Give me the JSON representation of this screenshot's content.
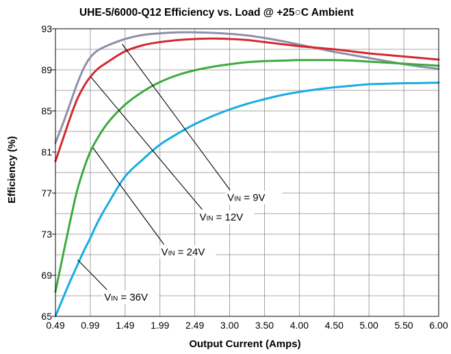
{
  "chart_data": {
    "type": "line",
    "title": "UHE-5/6000-Q12 Efficiency vs. Load @ +25○C Ambient",
    "xlabel": "Output Current (Amps)",
    "ylabel": "Efficiency (%)",
    "xlim": [
      0.49,
      6.0
    ],
    "ylim": [
      65,
      93
    ],
    "x_ticks": [
      "0.49",
      "0.99",
      "1.49",
      "1.99",
      "2.49",
      "3.00",
      "3.50",
      "4.00",
      "4.50",
      "5.00",
      "5.50",
      "6.00"
    ],
    "y_ticks": [
      "65",
      "69",
      "73",
      "77",
      "81",
      "85",
      "89",
      "93"
    ],
    "grid": true,
    "series": [
      {
        "name": "VIN = 9V",
        "color": "#8e8fa6",
        "x": [
          0.49,
          0.6,
          0.7,
          0.8,
          0.9,
          0.99,
          1.1,
          1.25,
          1.49,
          1.75,
          1.99,
          2.25,
          2.49,
          2.75,
          3.0,
          3.25,
          3.5,
          3.75,
          4.0,
          4.25,
          4.5,
          4.75,
          5.0,
          5.25,
          5.5,
          5.75,
          6.0
        ],
        "y": [
          81.9,
          83.8,
          85.7,
          87.6,
          89.2,
          90.2,
          90.9,
          91.4,
          92.0,
          92.4,
          92.55,
          92.65,
          92.65,
          92.6,
          92.5,
          92.35,
          92.1,
          91.8,
          91.45,
          91.1,
          90.75,
          90.45,
          90.15,
          89.85,
          89.55,
          89.3,
          89.1
        ]
      },
      {
        "name": "VIN = 12V",
        "color": "#d4282e",
        "x": [
          0.49,
          0.6,
          0.7,
          0.8,
          0.9,
          0.99,
          1.1,
          1.25,
          1.49,
          1.75,
          1.99,
          2.25,
          2.49,
          2.75,
          3.0,
          3.25,
          3.5,
          3.75,
          4.0,
          4.25,
          4.5,
          4.75,
          5.0,
          5.25,
          5.5,
          5.75,
          6.0
        ],
        "y": [
          80.1,
          82.3,
          84.3,
          86.1,
          87.4,
          88.3,
          89.1,
          89.8,
          90.8,
          91.4,
          91.7,
          91.9,
          92.0,
          92.05,
          92.0,
          91.9,
          91.7,
          91.5,
          91.3,
          91.15,
          91.0,
          90.8,
          90.6,
          90.45,
          90.3,
          90.15,
          90.0
        ]
      },
      {
        "name": "VIN = 24V",
        "color": "#3aaa3c",
        "x": [
          0.49,
          0.6,
          0.7,
          0.8,
          0.9,
          0.99,
          1.1,
          1.25,
          1.49,
          1.75,
          1.99,
          2.25,
          2.49,
          2.75,
          3.0,
          3.25,
          3.5,
          3.75,
          4.0,
          4.25,
          4.5,
          4.75,
          5.0,
          5.25,
          5.5,
          5.75,
          6.0
        ],
        "y": [
          67.4,
          71.0,
          74.2,
          77.2,
          79.4,
          81.0,
          82.4,
          83.9,
          85.6,
          86.9,
          87.8,
          88.5,
          88.95,
          89.3,
          89.55,
          89.75,
          89.85,
          89.9,
          89.95,
          89.95,
          89.95,
          89.9,
          89.8,
          89.7,
          89.6,
          89.5,
          89.4
        ]
      },
      {
        "name": "VIN = 36V",
        "color": "#16ace3",
        "x": [
          0.49,
          0.6,
          0.7,
          0.8,
          0.9,
          0.99,
          1.1,
          1.25,
          1.49,
          1.75,
          1.99,
          2.25,
          2.49,
          2.75,
          3.0,
          3.25,
          3.5,
          3.75,
          4.0,
          4.25,
          4.5,
          4.75,
          5.0,
          5.25,
          5.5,
          5.75,
          6.0
        ],
        "y": [
          65.0,
          66.8,
          68.4,
          69.9,
          71.4,
          72.6,
          74.2,
          76.0,
          78.6,
          80.3,
          81.7,
          82.8,
          83.7,
          84.5,
          85.15,
          85.7,
          86.15,
          86.55,
          86.85,
          87.1,
          87.3,
          87.45,
          87.6,
          87.65,
          87.7,
          87.72,
          87.75
        ]
      }
    ],
    "annotations": [
      {
        "base": "V",
        "sub": "IN",
        "rest": " = 9V",
        "series": 0,
        "x": 1.45,
        "y": 91.5,
        "tx": 3.0,
        "ty": 77.3
      },
      {
        "base": "V",
        "sub": "IN",
        "rest": " = 12V",
        "series": 1,
        "x": 1.0,
        "y": 88.3,
        "tx": 2.6,
        "ty": 75.4
      },
      {
        "base": "V",
        "sub": "IN",
        "rest": " = 24V",
        "series": 2,
        "x": 1.03,
        "y": 81.4,
        "tx": 2.05,
        "ty": 72.0
      },
      {
        "base": "V",
        "sub": "IN",
        "rest": " = 36V",
        "series": 3,
        "x": 0.81,
        "y": 70.5,
        "tx": 1.23,
        "ty": 67.6
      }
    ]
  }
}
